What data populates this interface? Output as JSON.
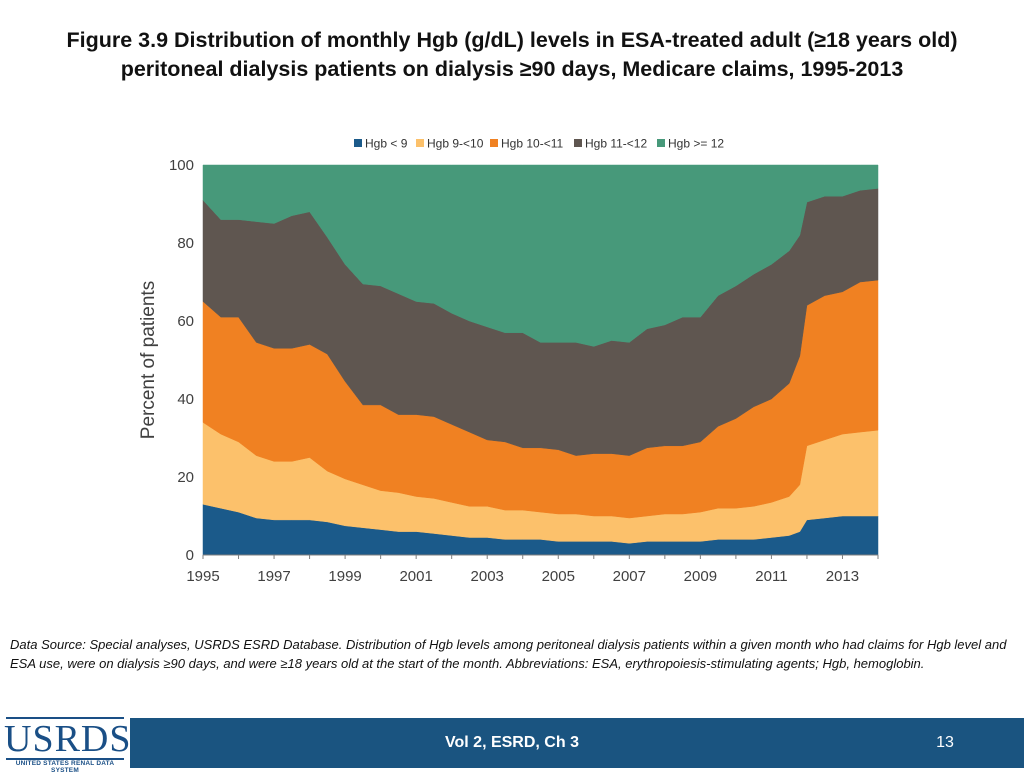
{
  "slide": {
    "title": "Figure 3.9 Distribution of monthly Hgb (g/dL) levels in ESA-treated adult (≥18 years old) peritoneal dialysis patients on dialysis ≥90 days, Medicare claims, 1995-2013",
    "source_note": "Data Source: Special analyses, USRDS ESRD Database. Distribution of Hgb levels among peritoneal dialysis patients within a given month who had claims for Hgb level and ESA use, were on dialysis ≥90 days, and were ≥18 years old at the start of the month. Abbreviations: ESA, erythropoiesis-stimulating agents; Hgb, hemoglobin.",
    "footer_center": "Vol 2, ESRD, Ch 3",
    "page_number": "13",
    "logo_text": "USRDS",
    "logo_subtext": "UNITED STATES RENAL DATA SYSTEM",
    "footer_color": "#1a5480"
  },
  "chart_data": {
    "type": "area",
    "stacked": true,
    "title": "Figure 3.9 Distribution of monthly Hgb (g/dL) levels in ESA-treated adult (≥18 years old) peritoneal dialysis patients on dialysis ≥90 days, Medicare claims, 1995-2013",
    "xlabel": "",
    "ylabel": "Percent of patients",
    "xlim": [
      1995,
      2014
    ],
    "ylim": [
      0,
      100
    ],
    "x_ticks": [
      1995,
      1997,
      1999,
      2001,
      2003,
      2005,
      2007,
      2009,
      2011,
      2013
    ],
    "x_tick_labels": [
      "1995",
      "1997",
      "1999",
      "2001",
      "2003",
      "2005",
      "2007",
      "2009",
      "2011",
      "2013"
    ],
    "y_ticks": [
      0,
      20,
      40,
      60,
      80,
      100
    ],
    "y_tick_labels": [
      "0",
      "20",
      "40",
      "60",
      "80",
      "100"
    ],
    "legend_position": "top",
    "x": [
      1995.0,
      1995.5,
      1996.0,
      1996.5,
      1997.0,
      1997.5,
      1998.0,
      1998.5,
      1999.0,
      1999.5,
      2000.0,
      2000.5,
      2001.0,
      2001.5,
      2002.0,
      2002.5,
      2003.0,
      2003.5,
      2004.0,
      2004.5,
      2005.0,
      2005.5,
      2006.0,
      2006.5,
      2007.0,
      2007.5,
      2008.0,
      2008.5,
      2009.0,
      2009.5,
      2010.0,
      2010.5,
      2011.0,
      2011.5,
      2011.8,
      2012.0,
      2012.5,
      2013.0,
      2013.5,
      2014.0
    ],
    "series": [
      {
        "name": "Hgb < 9",
        "color": "#1b5a8a",
        "values": [
          13,
          12,
          11,
          9.5,
          9,
          9,
          9,
          8.5,
          7.5,
          7,
          6.5,
          6,
          6,
          5.5,
          5,
          4.5,
          4.5,
          4,
          4,
          4,
          3.5,
          3.5,
          3.5,
          3.5,
          3,
          3.5,
          3.5,
          3.5,
          3.5,
          4,
          4,
          4,
          4.5,
          5,
          6,
          9,
          9.5,
          10,
          10,
          10
        ]
      },
      {
        "name": "Hgb 9-<10",
        "color": "#fcc16b",
        "values": [
          21,
          19,
          18,
          16,
          15,
          15,
          16,
          13,
          12,
          11,
          10,
          10,
          9,
          9,
          8.5,
          8,
          8,
          7.5,
          7.5,
          7,
          7,
          7,
          6.5,
          6.5,
          6.5,
          6.5,
          7,
          7,
          7.5,
          8,
          8,
          8.5,
          9,
          10,
          12,
          19,
          20,
          21,
          21.5,
          22
        ]
      },
      {
        "name": "Hgb 10-<11",
        "color": "#f08122",
        "values": [
          31,
          30,
          32,
          29,
          29,
          29,
          29,
          30,
          25,
          20.5,
          22,
          20,
          21,
          21,
          20,
          19,
          17,
          17.5,
          16,
          16.5,
          16.5,
          15,
          16,
          16,
          16,
          17.5,
          17.5,
          17.5,
          18,
          21,
          23,
          25.5,
          26.5,
          29,
          33,
          36,
          37,
          36.5,
          38.5,
          38.5
        ]
      },
      {
        "name": "Hgb 11-<12",
        "color": "#5f5650",
        "values": [
          26,
          25,
          25,
          31,
          32,
          34,
          34,
          30,
          30,
          31,
          30.5,
          31,
          29,
          29,
          28.5,
          28.5,
          29,
          28,
          29.5,
          27,
          27.5,
          29,
          27.5,
          29,
          29,
          30.5,
          31,
          33,
          32,
          33.5,
          34,
          34,
          34.5,
          34,
          31,
          26.5,
          25.5,
          24.5,
          23.5,
          23.5
        ]
      },
      {
        "name": "Hgb >= 12",
        "color": "#47997a",
        "values": [
          9,
          14,
          14,
          14.5,
          15,
          13,
          12,
          18.5,
          25.5,
          30.5,
          31,
          33,
          35,
          35.5,
          38,
          40,
          41.5,
          43,
          43,
          45.5,
          45.5,
          45.5,
          46.5,
          45,
          45.5,
          42,
          41,
          39,
          39,
          33.5,
          31,
          28,
          25.5,
          22,
          18,
          9.5,
          8,
          8,
          6.5,
          6
        ]
      }
    ]
  }
}
